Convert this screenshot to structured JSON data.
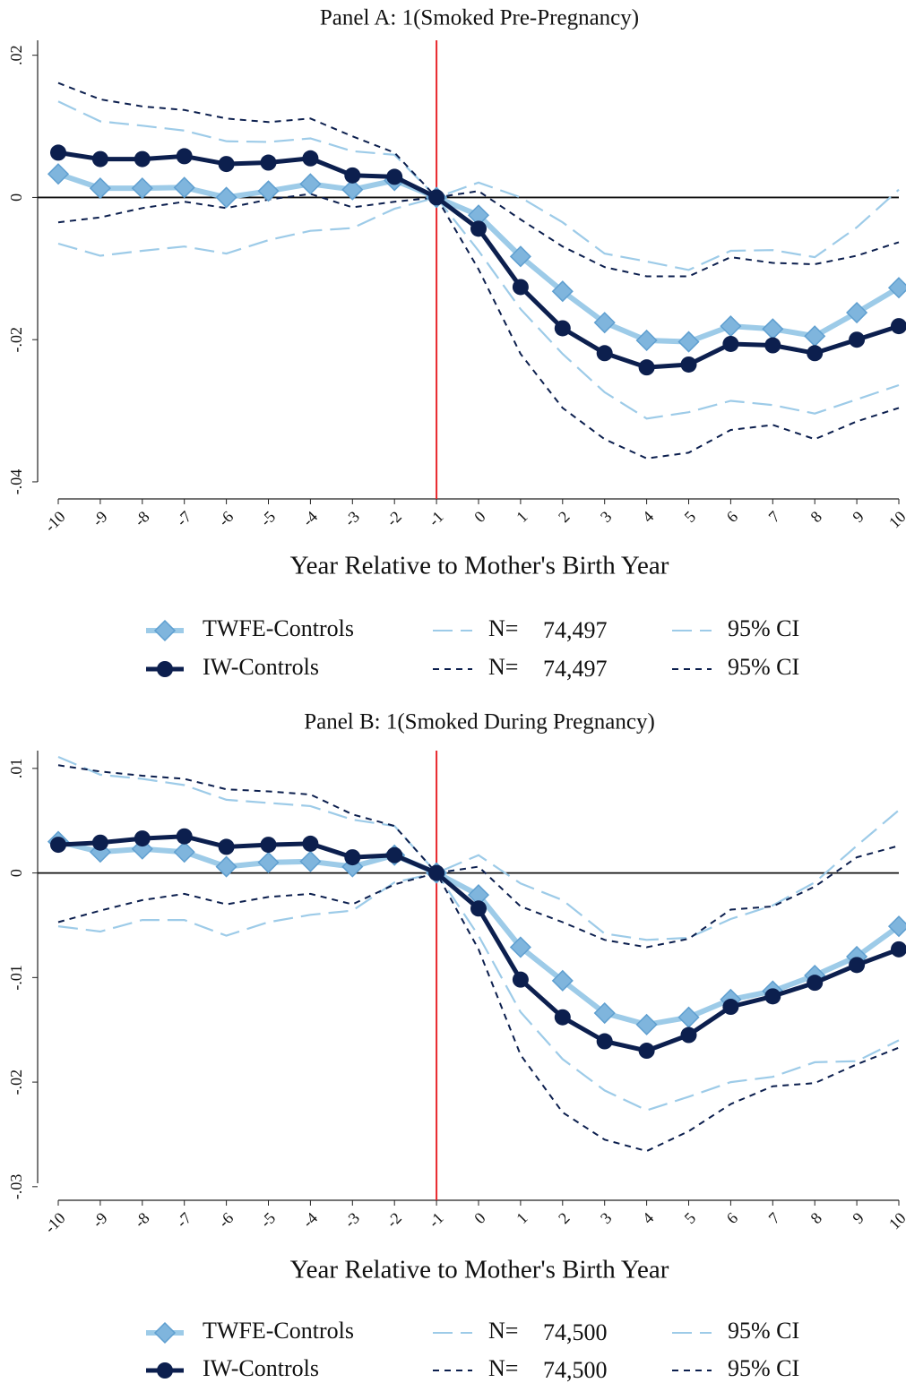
{
  "chart_data": [
    {
      "type": "line",
      "title": "Panel A: 1(Smoked Pre-Pregnancy)",
      "x_label": "Year Relative to Mother's Birth Year",
      "x": [
        -10,
        -9,
        -8,
        -7,
        -6,
        -5,
        -4,
        -3,
        -2,
        -1,
        0,
        1,
        2,
        3,
        4,
        5,
        6,
        7,
        8,
        9,
        10
      ],
      "xlim": [
        -10,
        10
      ],
      "xticks": [
        -10,
        -9,
        -8,
        -7,
        -6,
        -5,
        -4,
        -3,
        -2,
        -1,
        0,
        1,
        2,
        3,
        4,
        5,
        6,
        7,
        8,
        9,
        10
      ],
      "ylim": [
        -0.0424,
        0.0221
      ],
      "yticks": [
        {
          "value": -0.04,
          "label": "-.04"
        },
        {
          "value": -0.02,
          "label": "-.02"
        },
        0,
        {
          "value": 0.02,
          "label": ".02"
        }
      ],
      "vline": -1,
      "vline_color": "#e8262b",
      "hline": 0,
      "series": [
        {
          "name": "TWFE-Controls",
          "color": "#9dcbe8",
          "marker": "diamond",
          "marker_color": "#7fb5dd",
          "ci_dash": "long",
          "n_label": "N=",
          "n": "74,497",
          "ci_label": "95% CI",
          "values": [
            0.0033,
            0.0013,
            0.0013,
            0.0014,
            0,
            0.0009,
            0.0019,
            0.0011,
            0.0024,
            0,
            -0.0025,
            -0.0083,
            -0.0132,
            -0.0176,
            -0.0201,
            -0.0203,
            -0.0181,
            -0.0185,
            -0.0195,
            -0.0162,
            -0.0127
          ],
          "ci_upper": [
            0.0135,
            0.0107,
            0.0101,
            0.0094,
            0.0079,
            0.0078,
            0.0083,
            0.0065,
            0.006,
            0,
            0.0021,
            0,
            -0.0035,
            -0.0079,
            -0.009,
            -0.0102,
            -0.0075,
            -0.0074,
            -0.0084,
            -0.0042,
            0.0011
          ],
          "ci_lower": [
            -0.0065,
            -0.0082,
            -0.0075,
            -0.0069,
            -0.0079,
            -0.006,
            -0.0047,
            -0.0043,
            -0.0016,
            0,
            -0.0075,
            -0.0157,
            -0.022,
            -0.0274,
            -0.0311,
            -0.0302,
            -0.0286,
            -0.0292,
            -0.0304,
            -0.0284,
            -0.0264
          ]
        },
        {
          "name": "IW-Controls",
          "color": "#0c1f4e",
          "marker": "circle",
          "marker_color": "#0c1f4e",
          "ci_dash": "short",
          "n_label": "N=",
          "n": "74,497",
          "ci_label": "95% CI",
          "values": [
            0.0063,
            0.0054,
            0.0054,
            0.0058,
            0.0047,
            0.0049,
            0.0055,
            0.0031,
            0.0029,
            0,
            -0.0044,
            -0.0126,
            -0.0184,
            -0.0219,
            -0.0239,
            -0.0235,
            -0.0206,
            -0.0208,
            -0.0219,
            -0.02,
            -0.0181
          ],
          "ci_upper": [
            0.0161,
            0.0138,
            0.0128,
            0.0123,
            0.0111,
            0.0106,
            0.0111,
            0.0086,
            0.0063,
            0,
            0.0009,
            -0.0031,
            -0.0069,
            -0.0098,
            -0.0111,
            -0.0111,
            -0.0084,
            -0.0092,
            -0.0094,
            -0.0082,
            -0.0063
          ],
          "ci_lower": [
            -0.0035,
            -0.0028,
            -0.0015,
            -0.0006,
            -0.0015,
            -0.0003,
            0.0005,
            -0.0014,
            -0.0006,
            0,
            -0.0101,
            -0.022,
            -0.0296,
            -0.034,
            -0.0367,
            -0.0359,
            -0.0327,
            -0.032,
            -0.034,
            -0.0315,
            -0.0296
          ]
        }
      ]
    },
    {
      "type": "line",
      "title": "Panel B: 1(Smoked During Pregnancy)",
      "x_label": "Year Relative to Mother's Birth Year",
      "x": [
        -10,
        -9,
        -8,
        -7,
        -6,
        -5,
        -4,
        -3,
        -2,
        -1,
        0,
        1,
        2,
        3,
        4,
        5,
        6,
        7,
        8,
        9,
        10
      ],
      "xlim": [
        -10,
        10
      ],
      "xticks": [
        -10,
        -9,
        -8,
        -7,
        -6,
        -5,
        -4,
        -3,
        -2,
        -1,
        0,
        1,
        2,
        3,
        4,
        5,
        6,
        7,
        8,
        9,
        10
      ],
      "ylim": [
        -0.0313,
        0.0117
      ],
      "yticks": [
        {
          "value": -0.03,
          "label": "-.03"
        },
        {
          "value": -0.02,
          "label": "-.02"
        },
        {
          "value": -0.01,
          "label": "-.01"
        },
        0,
        {
          "value": 0.01,
          "label": ".01"
        }
      ],
      "vline": -1,
      "vline_color": "#e8262b",
      "hline": 0,
      "series": [
        {
          "name": "TWFE-Controls",
          "color": "#9dcbe8",
          "marker": "diamond",
          "marker_color": "#7fb5dd",
          "ci_dash": "long",
          "n_label": "N=",
          "n": "74,500",
          "ci_label": "95% CI",
          "values": [
            0.003,
            0.002,
            0.0023,
            0.002,
            0.0006,
            0.001,
            0.0011,
            0.0006,
            0.0017,
            0,
            -0.0021,
            -0.0071,
            -0.0103,
            -0.0134,
            -0.0145,
            -0.0138,
            -0.0121,
            -0.0113,
            -0.0098,
            -0.008,
            -0.0051
          ],
          "ci_upper": [
            0.0111,
            0.0094,
            0.009,
            0.0084,
            0.007,
            0.0067,
            0.0064,
            0.0051,
            0.0045,
            0,
            0.0017,
            -0.001,
            -0.0026,
            -0.0058,
            -0.0064,
            -0.0062,
            -0.0044,
            -0.0031,
            -0.0009,
            0.0026,
            0.006
          ],
          "ci_lower": [
            -0.0051,
            -0.0056,
            -0.0045,
            -0.0045,
            -0.006,
            -0.0047,
            -0.004,
            -0.0036,
            -0.0009,
            0,
            -0.006,
            -0.0133,
            -0.0178,
            -0.0208,
            -0.0227,
            -0.0214,
            -0.02,
            -0.0195,
            -0.0181,
            -0.018,
            -0.016
          ]
        },
        {
          "name": "IW-Controls",
          "color": "#0c1f4e",
          "marker": "circle",
          "marker_color": "#0c1f4e",
          "ci_dash": "short",
          "n_label": "N=",
          "n": "74,500",
          "ci_label": "95% CI",
          "values": [
            0.0027,
            0.0029,
            0.0033,
            0.0035,
            0.0025,
            0.0027,
            0.0028,
            0.0015,
            0.0017,
            0,
            -0.0034,
            -0.0102,
            -0.0138,
            -0.0161,
            -0.017,
            -0.0155,
            -0.0128,
            -0.0118,
            -0.0105,
            -0.0088,
            -0.0073
          ],
          "ci_upper": [
            0.0103,
            0.0097,
            0.0093,
            0.009,
            0.008,
            0.0078,
            0.0075,
            0.0056,
            0.0045,
            0,
            0.0006,
            -0.0032,
            -0.0047,
            -0.0064,
            -0.0071,
            -0.0063,
            -0.0035,
            -0.0032,
            -0.0013,
            0.0015,
            0.0026
          ],
          "ci_lower": [
            -0.0047,
            -0.0036,
            -0.0026,
            -0.002,
            -0.003,
            -0.0023,
            -0.002,
            -0.003,
            -0.0011,
            0,
            -0.0073,
            -0.0174,
            -0.0229,
            -0.0255,
            -0.0266,
            -0.0247,
            -0.0221,
            -0.0204,
            -0.0201,
            -0.0183,
            -0.0167
          ]
        }
      ]
    }
  ]
}
